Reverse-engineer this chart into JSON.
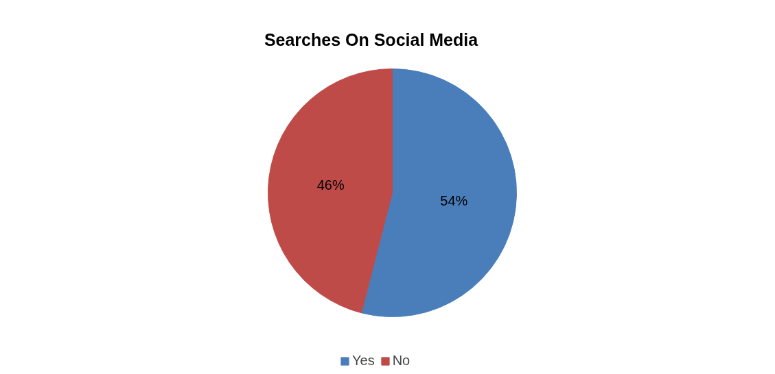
{
  "chart_data": {
    "type": "pie",
    "title": "Searches On Social Media",
    "categories": [
      "Yes",
      "No"
    ],
    "values": [
      54,
      46
    ],
    "colors": [
      "#4a7ebb",
      "#be4b48"
    ],
    "value_labels": [
      "54%",
      "46%"
    ],
    "legend": "bottom"
  }
}
